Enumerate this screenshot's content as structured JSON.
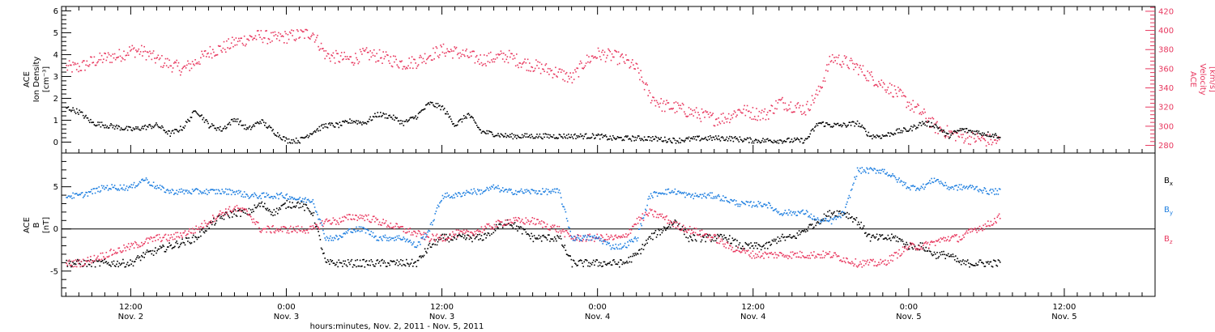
{
  "colors": {
    "black": "#000000",
    "density": "#000000",
    "velocity": "#e8385f",
    "bx": "#000000",
    "by": "#1f7fe0",
    "bz": "#e8385f"
  },
  "x_axis": {
    "title": "hours:minutes, Nov. 2, 2011 - Nov. 5, 2011",
    "ticks": [
      {
        "t": 12,
        "time": "12:00",
        "date": "Nov. 2"
      },
      {
        "t": 24,
        "time": "0:00",
        "date": "Nov. 3"
      },
      {
        "t": 36,
        "time": "12:00",
        "date": "Nov. 3"
      },
      {
        "t": 48,
        "time": "0:00",
        "date": "Nov. 4"
      },
      {
        "t": 60,
        "time": "12:00",
        "date": "Nov. 4"
      },
      {
        "t": 72,
        "time": "0:00",
        "date": "Nov. 5"
      },
      {
        "t": 84,
        "time": "12:00",
        "date": "Nov. 5"
      }
    ]
  },
  "panel_top": {
    "left_label": [
      "ACE",
      "Ion Density",
      "[cm⁻³]"
    ],
    "right_label": [
      "ACE",
      "Velocity",
      "[km/s]"
    ],
    "left_ticks": [
      "0",
      "1",
      "2",
      "3",
      "4",
      "5",
      "6"
    ],
    "right_ticks": [
      "280",
      "300",
      "320",
      "340",
      "360",
      "380",
      "400",
      "420"
    ]
  },
  "panel_bottom": {
    "left_label": [
      "ACE",
      "B",
      "[nT]"
    ],
    "left_ticks": [
      "-5",
      "0",
      "5"
    ],
    "legend": [
      {
        "label": "Bx",
        "base": "B",
        "sub": "x",
        "series": "bx"
      },
      {
        "label": "By",
        "base": "B",
        "sub": "y",
        "series": "by"
      },
      {
        "label": "Bz",
        "base": "B",
        "sub": "z",
        "series": "bz"
      }
    ]
  },
  "chart_data": [
    {
      "type": "scatter",
      "title": "",
      "xlabel": "hours:minutes, Nov. 2, 2011 - Nov. 5, 2011",
      "xlim": [
        "2011-11-02 06:40",
        "2011-11-05 19:00"
      ],
      "x_unit": "hours after 2011-11-02 00:00",
      "ylabel": "ACE Ion Density [cm⁻³]",
      "ylim": [
        -0.5,
        6.2
      ],
      "y2label": "ACE Velocity [km/s]",
      "y2lim": [
        272,
        425
      ],
      "grid": false,
      "series": [
        {
          "name": "Ion Density",
          "axis": "left",
          "color": "#000000",
          "x": [
            7,
            8,
            9,
            10,
            12,
            14,
            15,
            16,
            17,
            18,
            19,
            20,
            21,
            22,
            23,
            24,
            25,
            26,
            27,
            28,
            29,
            30,
            31,
            32,
            33,
            34,
            35,
            36,
            37,
            38,
            39,
            40,
            41,
            42,
            43,
            44,
            46,
            48,
            49,
            50,
            52,
            54,
            56,
            58,
            60,
            62,
            64,
            65,
            66,
            67,
            68,
            69,
            70,
            71,
            72,
            73,
            74,
            75,
            76,
            77,
            78,
            79
          ],
          "values": [
            1.6,
            1.4,
            0.9,
            0.8,
            0.6,
            0.8,
            0.4,
            0.7,
            1.5,
            0.8,
            0.6,
            1.1,
            0.6,
            1.0,
            0.5,
            0.1,
            0.1,
            0.5,
            0.8,
            0.8,
            1.0,
            0.9,
            1.3,
            1.2,
            0.9,
            1.2,
            1.8,
            1.6,
            0.8,
            1.3,
            0.5,
            0.4,
            0.3,
            0.3,
            0.3,
            0.3,
            0.3,
            0.3,
            0.2,
            0.2,
            0.2,
            0.1,
            0.2,
            0.2,
            0.1,
            0.1,
            0.1,
            0.9,
            0.8,
            0.8,
            0.9,
            0.3,
            0.3,
            0.5,
            0.6,
            0.9,
            0.8,
            0.3,
            0.6,
            0.5,
            0.4,
            0.3
          ]
        },
        {
          "name": "Velocity",
          "axis": "right",
          "color": "#e8385f",
          "x": [
            7,
            8,
            9,
            10,
            11,
            12,
            13,
            14,
            15,
            16,
            17,
            18,
            19,
            20,
            21,
            22,
            23,
            24,
            25,
            26,
            27,
            28,
            29,
            30,
            31,
            32,
            33,
            34,
            35,
            36,
            37,
            38,
            39,
            40,
            41,
            42,
            43,
            44,
            45,
            46,
            47,
            48,
            49,
            50,
            51,
            52,
            53,
            54,
            55,
            56,
            57,
            58,
            59,
            60,
            61,
            62,
            63,
            64,
            65,
            66,
            67,
            68,
            69,
            70,
            71,
            72,
            73,
            74,
            75,
            76,
            77,
            78,
            79
          ],
          "values": [
            362,
            362,
            368,
            372,
            374,
            380,
            378,
            370,
            365,
            360,
            368,
            378,
            382,
            388,
            392,
            395,
            392,
            394,
            396,
            398,
            375,
            372,
            370,
            376,
            374,
            370,
            366,
            368,
            375,
            380,
            378,
            374,
            370,
            372,
            374,
            368,
            364,
            360,
            356,
            350,
            368,
            376,
            374,
            370,
            360,
            332,
            322,
            320,
            316,
            312,
            308,
            310,
            318,
            314,
            313,
            326,
            322,
            318,
            336,
            372,
            368,
            362,
            352,
            344,
            336,
            324,
            314,
            300,
            294,
            290,
            288,
            286,
            285
          ]
        }
      ]
    },
    {
      "type": "scatter",
      "title": "",
      "xlabel": "hours:minutes, Nov. 2, 2011 - Nov. 5, 2011",
      "xlim": [
        "2011-11-02 06:40",
        "2011-11-05 19:00"
      ],
      "x_unit": "hours after 2011-11-02 00:00",
      "ylabel": "ACE B [nT]",
      "ylim": [
        -8,
        9
      ],
      "grid": false,
      "reference_line": 0,
      "series": [
        {
          "name": "Bx",
          "color": "#000000",
          "x": [
            7,
            8,
            9,
            10,
            11,
            12,
            13,
            14,
            15,
            16,
            17,
            18,
            19,
            20,
            21,
            22,
            23,
            24,
            25,
            26,
            27,
            28,
            29,
            30,
            31,
            32,
            33,
            34,
            35,
            36,
            37,
            38,
            39,
            40,
            41,
            42,
            43,
            44,
            45,
            46,
            47,
            48,
            49,
            50,
            51,
            52,
            53,
            54,
            55,
            56,
            57,
            58,
            59,
            60,
            61,
            62,
            63,
            64,
            65,
            66,
            67,
            68,
            69,
            70,
            71,
            72,
            73,
            74,
            75,
            76,
            77,
            78,
            79
          ],
          "values": [
            -4,
            -4,
            -4,
            -4,
            -4,
            -4,
            -3,
            -2.5,
            -2,
            -1.5,
            -1,
            0.5,
            1.5,
            2,
            2,
            3,
            2,
            3,
            3,
            2,
            -4,
            -4,
            -4,
            -4,
            -4,
            -4,
            -4,
            -4,
            -2,
            -1,
            -1,
            -1,
            -1,
            0,
            1,
            0,
            -1,
            -1,
            -1,
            -4,
            -4,
            -4,
            -4,
            -4,
            -3,
            -1,
            0,
            1,
            -1,
            -1,
            -1,
            -1,
            -2,
            -2,
            -2,
            -1,
            -1,
            0,
            1,
            2,
            2,
            1,
            -1,
            -1,
            -1,
            -2,
            -2,
            -3,
            -3,
            -4,
            -4,
            -4,
            -4
          ]
        },
        {
          "name": "By",
          "color": "#1f7fe0",
          "x": [
            7,
            8,
            9,
            10,
            11,
            12,
            13,
            14,
            15,
            16,
            17,
            18,
            19,
            20,
            21,
            22,
            23,
            24,
            25,
            26,
            27,
            28,
            29,
            30,
            31,
            32,
            33,
            34,
            35,
            36,
            37,
            38,
            39,
            40,
            41,
            42,
            43,
            44,
            45,
            46,
            47,
            48,
            49,
            50,
            51,
            52,
            53,
            54,
            55,
            56,
            57,
            58,
            59,
            60,
            61,
            62,
            63,
            64,
            65,
            66,
            67,
            68,
            69,
            70,
            71,
            72,
            73,
            74,
            75,
            76,
            77,
            78,
            79
          ],
          "values": [
            4,
            4,
            4.5,
            5,
            5,
            5,
            6,
            5,
            4.5,
            4.5,
            4.5,
            4.5,
            4.5,
            4.5,
            4,
            4,
            4,
            4,
            3.5,
            3.5,
            -1,
            -1,
            0,
            0,
            -1,
            -1,
            -1,
            -2,
            0,
            4,
            4,
            4.5,
            4.5,
            5,
            4.5,
            4.5,
            4.5,
            4.5,
            4.5,
            -1,
            -1,
            -1,
            -2,
            -2,
            -1,
            4,
            4.5,
            4.5,
            4,
            4,
            4,
            3.5,
            3,
            3,
            3,
            2,
            2,
            2,
            1,
            1,
            2,
            7,
            7,
            7,
            6,
            5,
            5,
            6,
            5,
            5,
            5,
            4.5,
            4.5
          ]
        },
        {
          "name": "Bz",
          "color": "#e8385f",
          "x": [
            7,
            8,
            9,
            10,
            11,
            12,
            13,
            14,
            15,
            16,
            17,
            18,
            19,
            20,
            21,
            22,
            23,
            24,
            25,
            26,
            27,
            28,
            29,
            30,
            31,
            32,
            33,
            34,
            35,
            36,
            37,
            38,
            39,
            40,
            41,
            42,
            43,
            44,
            45,
            46,
            47,
            48,
            49,
            50,
            51,
            52,
            53,
            54,
            55,
            56,
            57,
            58,
            59,
            60,
            61,
            62,
            63,
            64,
            65,
            66,
            67,
            68,
            69,
            70,
            71,
            72,
            73,
            74,
            75,
            76,
            77,
            78,
            79
          ],
          "values": [
            -4,
            -4,
            -3.5,
            -3,
            -2.5,
            -2,
            -1.5,
            -1,
            -1,
            -0.5,
            0,
            1,
            2,
            2.5,
            2,
            0,
            0,
            0,
            0,
            0,
            1,
            1,
            1.5,
            1.5,
            1,
            0.5,
            0,
            -0.5,
            -1,
            -1,
            -0.5,
            -0.5,
            0,
            0.5,
            1,
            1,
            1,
            0.5,
            0,
            -1,
            -1,
            -1,
            -1,
            -1,
            1,
            2,
            1.5,
            0.5,
            0,
            -0.5,
            -1,
            -2,
            -2.5,
            -3,
            -3,
            -3,
            -3,
            -3,
            -3,
            -3,
            -3.5,
            -4,
            -4,
            -4,
            -3,
            -2,
            -2,
            -1.5,
            -1,
            -1,
            0,
            0.5,
            1.5
          ]
        }
      ]
    }
  ]
}
